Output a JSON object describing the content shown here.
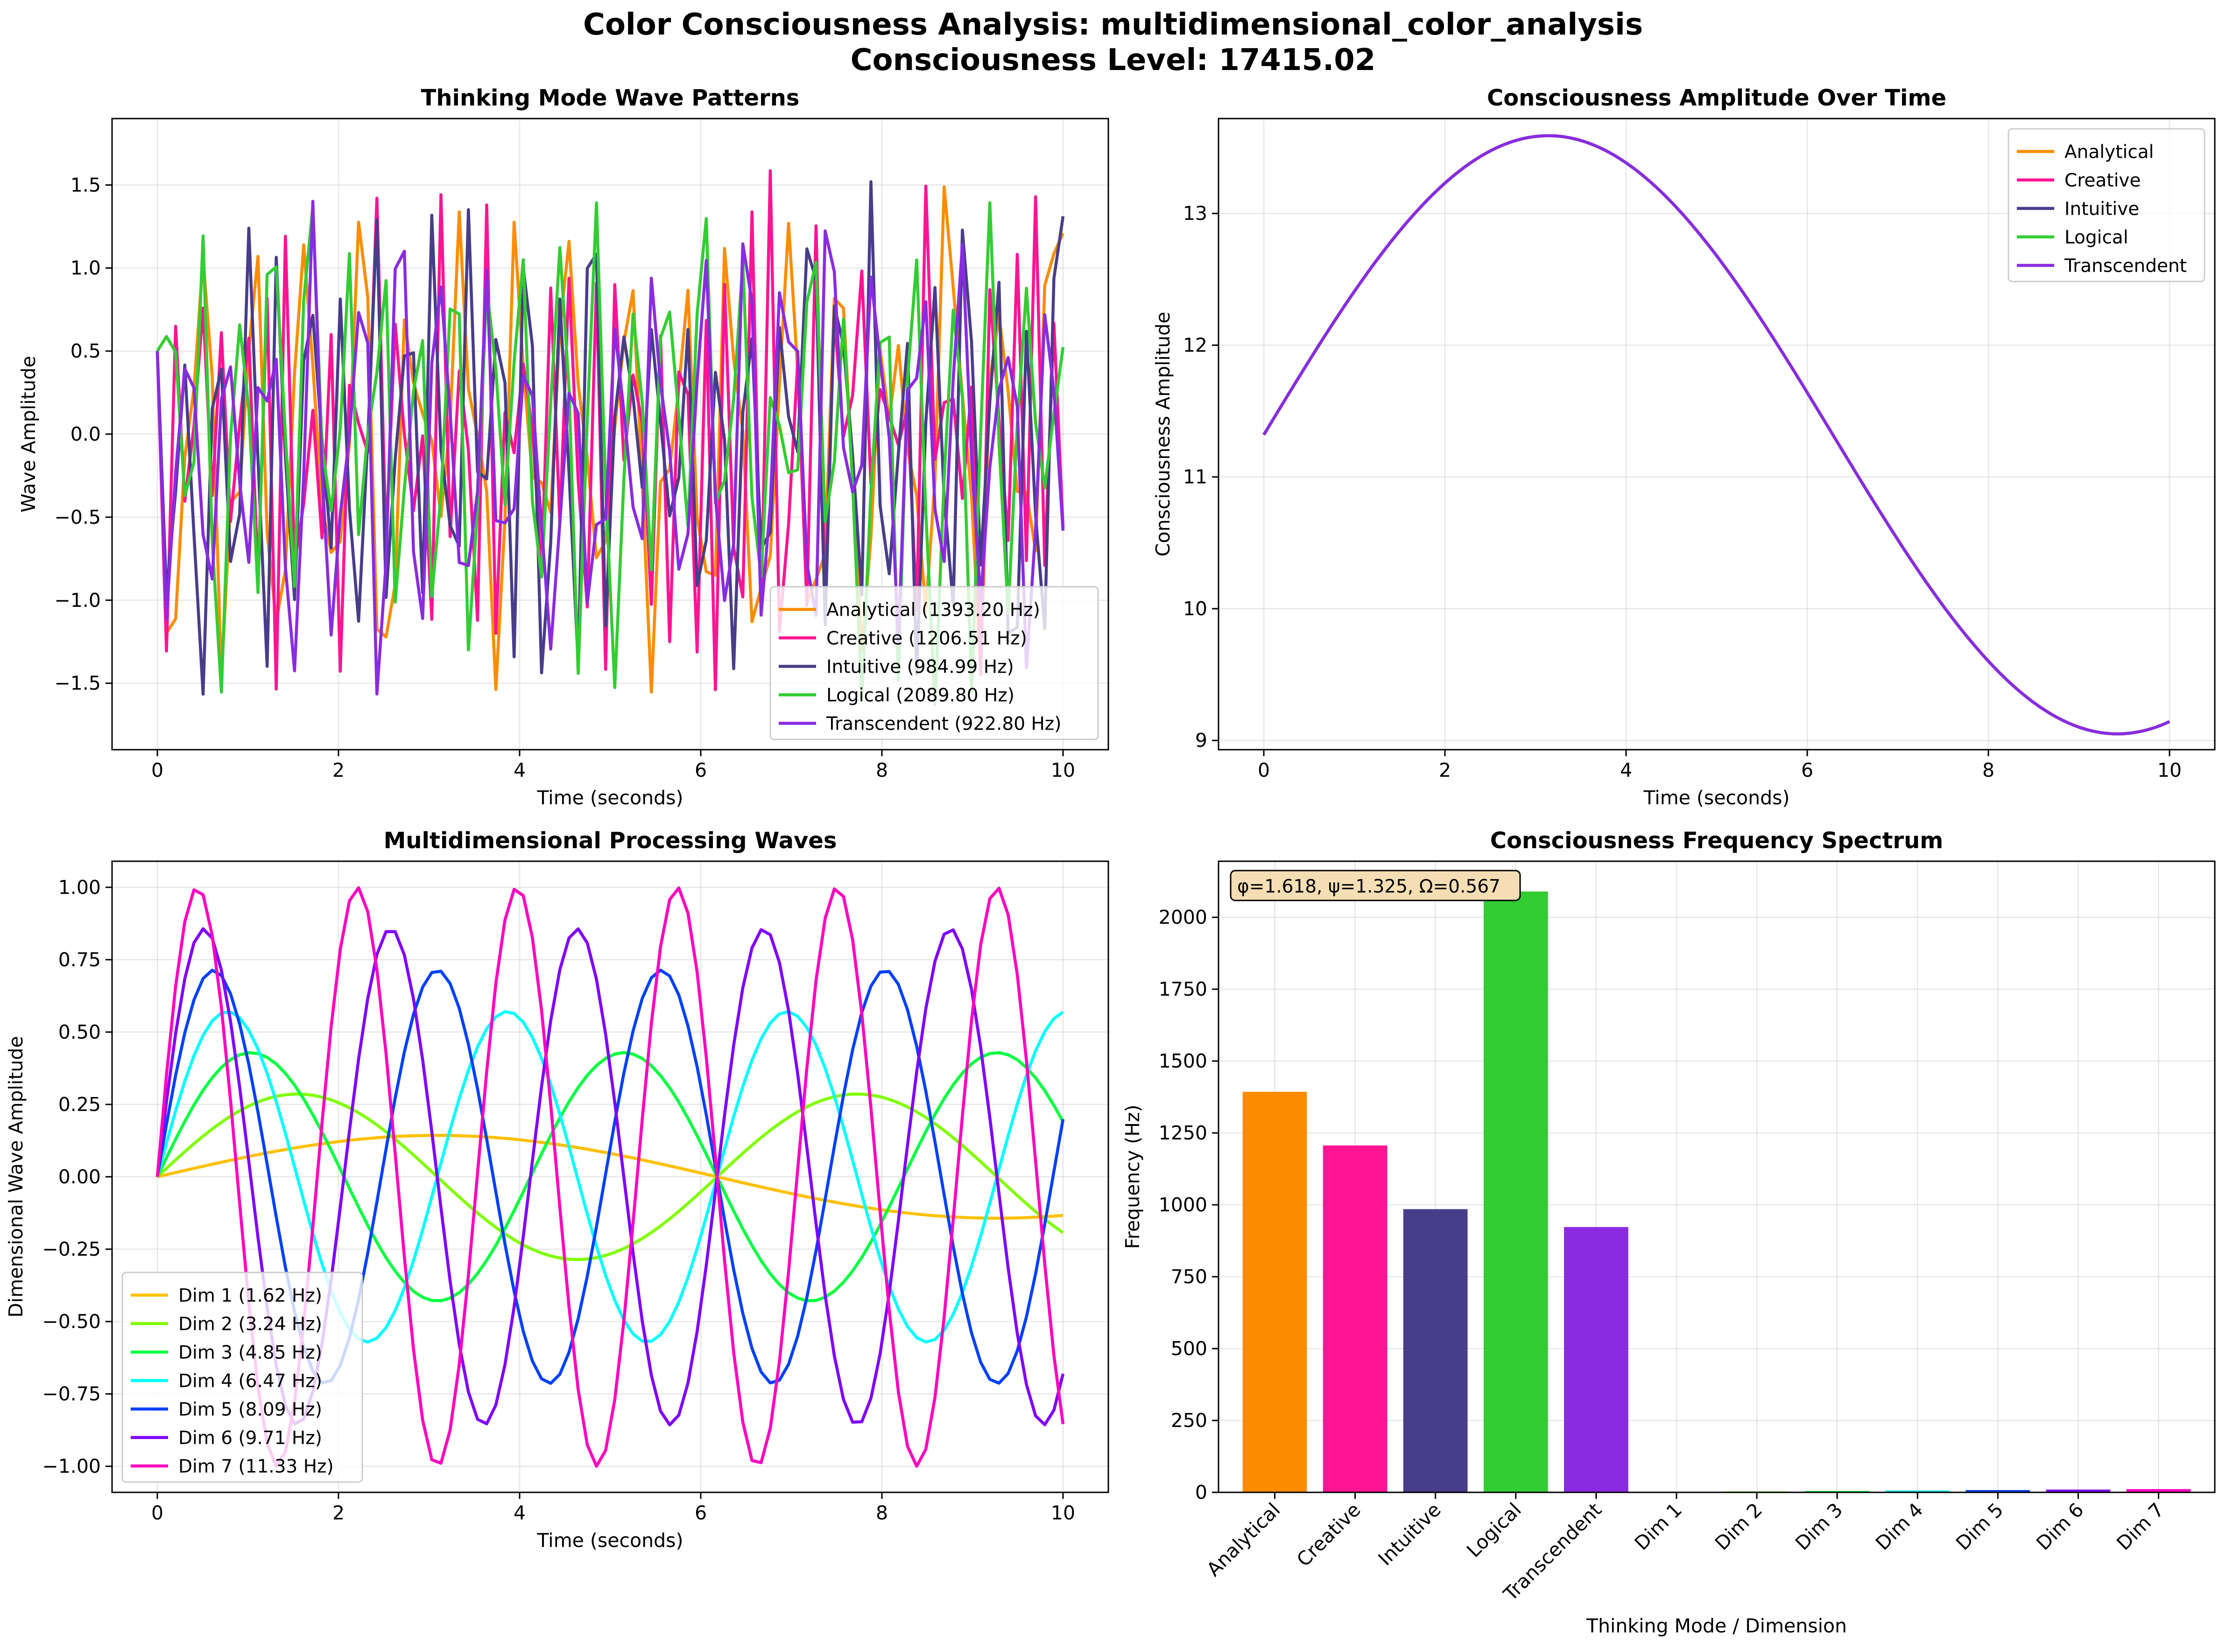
{
  "figure": {
    "title_line1": "Color Consciousness Analysis: multidimensional_color_analysis",
    "title_line2": "Consciousness Level: 17415.02"
  },
  "chart_data": [
    {
      "id": "waves",
      "type": "line",
      "title": "Thinking Mode Wave Patterns",
      "xlabel": "Time (seconds)",
      "ylabel": "Wave Amplitude",
      "xlim": [
        -0.5,
        10.5
      ],
      "ylim": [
        -1.9,
        1.9
      ],
      "xticks": [
        0,
        2,
        4,
        6,
        8,
        10
      ],
      "yticks": [
        -1.5,
        -1.0,
        -0.5,
        0.0,
        0.5,
        1.0,
        1.5
      ],
      "tick_format": "minus",
      "grid": true,
      "legend": "lower right",
      "x_samples": {
        "start": 0,
        "end": 10,
        "count": 100
      },
      "series": [
        {
          "name": "Analytical (1393.20 Hz)",
          "color": "#ff8c00",
          "freq": 1393.2,
          "phase": 0,
          "amp": 0.5,
          "seed": 11
        },
        {
          "name": "Creative (1206.51 Hz)",
          "color": "#ff1493",
          "freq": 1206.51,
          "phase": 1.0,
          "amp": 0.5,
          "seed": 23
        },
        {
          "name": "Intuitive (984.99 Hz)",
          "color": "#483d8b",
          "freq": 984.99,
          "phase": 2.0,
          "amp": 0.5,
          "seed": 37
        },
        {
          "name": "Logical (2089.80 Hz)",
          "color": "#32cd32",
          "freq": 2089.8,
          "phase": 3.0,
          "amp": 0.5,
          "seed": 41
        },
        {
          "name": "Transcendent (922.80 Hz)",
          "color": "#8a2be2",
          "freq": 922.8,
          "phase": 4.0,
          "amp": 0.5,
          "seed": 53
        }
      ]
    },
    {
      "id": "amplitude",
      "type": "line",
      "title": "Consciousness Amplitude Over Time",
      "xlabel": "Time (seconds)",
      "ylabel": "Consciousness Amplitude",
      "xlim": [
        -0.5,
        10.5
      ],
      "ylim": [
        8.93,
        13.72
      ],
      "xticks": [
        0,
        2,
        4,
        6,
        8,
        10
      ],
      "yticks": [
        9,
        10,
        11,
        12,
        13
      ],
      "grid": true,
      "legend": "upper right",
      "curve": {
        "x0": 0,
        "x1": 10,
        "count": 200,
        "offset": 11.32,
        "amp": 2.27,
        "freq": 0.5
      },
      "series": [
        {
          "name": "Analytical",
          "color": "#ff8c00"
        },
        {
          "name": "Creative",
          "color": "#ff1493"
        },
        {
          "name": "Intuitive",
          "color": "#483d8b"
        },
        {
          "name": "Logical",
          "color": "#32cd32"
        },
        {
          "name": "Transcendent",
          "color": "#8a2be2"
        }
      ]
    },
    {
      "id": "dims",
      "type": "line",
      "title": "Multidimensional Processing Waves",
      "xlabel": "Time (seconds)",
      "ylabel": "Dimensional Wave Amplitude",
      "xlim": [
        -0.5,
        10.5
      ],
      "ylim": [
        -1.09,
        1.09
      ],
      "xticks": [
        0,
        2,
        4,
        6,
        8,
        10
      ],
      "yticks": [
        -1.0,
        -0.75,
        -0.5,
        -0.25,
        0.0,
        0.25,
        0.5,
        0.75,
        1.0
      ],
      "tick_format": "minus2",
      "grid": true,
      "legend": "lower left",
      "x_samples": {
        "start": 0,
        "end": 10,
        "count": 100
      },
      "series": [
        {
          "name": "Dim 1 (1.62 Hz)",
          "color": "#ffc000",
          "freq": 1.618,
          "amp": 0.143
        },
        {
          "name": "Dim 2 (3.24 Hz)",
          "color": "#80ff00",
          "freq": 3.236,
          "amp": 0.286
        },
        {
          "name": "Dim 3 (4.85 Hz)",
          "color": "#00ff40",
          "freq": 4.854,
          "amp": 0.429
        },
        {
          "name": "Dim 4 (6.47 Hz)",
          "color": "#00ffff",
          "freq": 6.472,
          "amp": 0.571
        },
        {
          "name": "Dim 5 (8.09 Hz)",
          "color": "#0040ff",
          "freq": 8.09,
          "amp": 0.714
        },
        {
          "name": "Dim 6 (9.71 Hz)",
          "color": "#8000ff",
          "freq": 9.708,
          "amp": 0.857
        },
        {
          "name": "Dim 7 (11.33 Hz)",
          "color": "#ff00c0",
          "freq": 11.326,
          "amp": 1.0
        }
      ]
    },
    {
      "id": "spectrum",
      "type": "bar",
      "title": "Consciousness Frequency Spectrum",
      "xlabel": "Thinking Mode / Dimension",
      "ylabel": "Frequency (Hz)",
      "ylim": [
        0,
        2195
      ],
      "yticks": [
        0,
        250,
        500,
        750,
        1000,
        1250,
        1500,
        1750,
        2000
      ],
      "grid": true,
      "annotation": "φ=1.618, ψ=1.325, Ω=0.567",
      "categories": [
        "Analytical",
        "Creative",
        "Intuitive",
        "Logical",
        "Transcendent",
        "Dim 1",
        "Dim 2",
        "Dim 3",
        "Dim 4",
        "Dim 5",
        "Dim 6",
        "Dim 7"
      ],
      "values": [
        1393.2,
        1206.51,
        984.99,
        2089.8,
        922.8,
        1.62,
        3.24,
        4.85,
        6.47,
        8.09,
        9.71,
        11.33
      ],
      "colors": [
        "#ff8c00",
        "#ff1493",
        "#483d8b",
        "#32cd32",
        "#8a2be2",
        "#ffc000",
        "#80ff00",
        "#00ff40",
        "#00ffff",
        "#0040ff",
        "#8000ff",
        "#ff00c0"
      ]
    }
  ]
}
